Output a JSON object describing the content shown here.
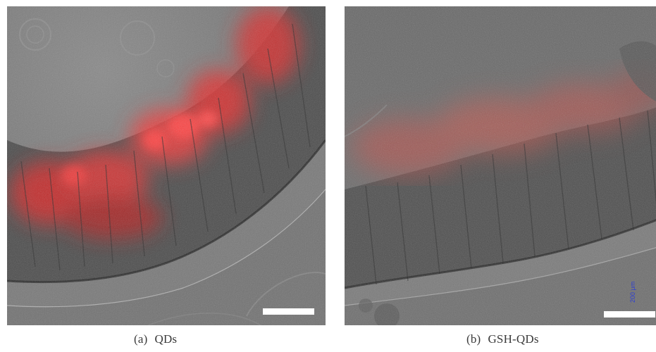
{
  "figure": {
    "panels": [
      {
        "id": "a",
        "sublabel": "(a)",
        "label": "QDs",
        "scale_bar_text": "",
        "fluorescence_color": "#ff3a3a"
      },
      {
        "id": "b",
        "sublabel": "(b)",
        "label": "GSH-QDs",
        "scale_bar_text": "200 μm",
        "fluorescence_color": "#e85a50"
      }
    ]
  }
}
